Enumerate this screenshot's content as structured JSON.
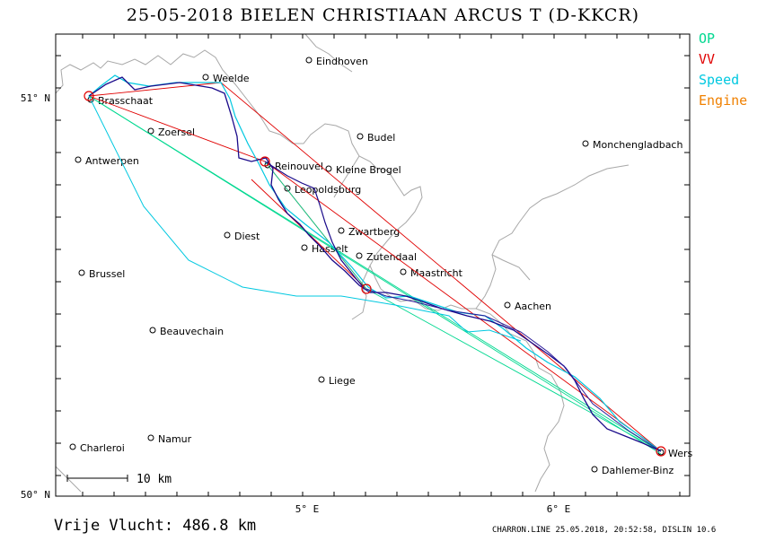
{
  "title": "25-05-2018   BIELEN CHRISTIAAN   ARCUS T (D-KKCR)",
  "legend": [
    {
      "label": "OP",
      "color": "#00d890"
    },
    {
      "label": "VV",
      "color": "#e00000"
    },
    {
      "label": "Speed",
      "color": "#00c8e0"
    },
    {
      "label": "Engine",
      "color": "#f08000"
    }
  ],
  "axes": {
    "lat_labels": [
      "51° N",
      "50° N"
    ],
    "lon_labels": [
      "5° E",
      "6° E"
    ]
  },
  "scale_bar": "10 km",
  "places": [
    {
      "name": "Eindhoven",
      "lon": 5.0,
      "lat": 51.44
    },
    {
      "name": "Weelde",
      "lon": 4.95,
      "lat": 51.41
    },
    {
      "name": "Brasschaat",
      "lon": 4.49,
      "lat": 51.29
    },
    {
      "name": "Budel",
      "lon": 5.58,
      "lat": 51.27
    },
    {
      "name": "Zoersel",
      "lon": 4.71,
      "lat": 51.27
    },
    {
      "name": "Monchengladbach",
      "lon": 6.44,
      "lat": 51.19
    },
    {
      "name": "Antwerpen",
      "lon": 4.4,
      "lat": 51.22
    },
    {
      "name": "Reinouvel",
      "lon": 5.33,
      "lat": 51.16
    },
    {
      "name": "Kleine Brogel",
      "lon": 5.45,
      "lat": 51.17
    },
    {
      "name": "Leopoldsburg",
      "lon": 5.26,
      "lat": 51.12
    },
    {
      "name": "Diest",
      "lon": 5.05,
      "lat": 50.98
    },
    {
      "name": "Zwartberg",
      "lon": 5.53,
      "lat": 51.0
    },
    {
      "name": "Hasselt",
      "lon": 5.33,
      "lat": 50.93
    },
    {
      "name": "Zutendaal",
      "lon": 5.58,
      "lat": 50.93
    },
    {
      "name": "Maastricht",
      "lon": 5.69,
      "lat": 50.85
    },
    {
      "name": "Brussel",
      "lon": 4.35,
      "lat": 50.85
    },
    {
      "name": "Aachen",
      "lon": 6.08,
      "lat": 50.78
    },
    {
      "name": "Beauvechain",
      "lon": 4.77,
      "lat": 50.75
    },
    {
      "name": "Liege",
      "lon": 5.57,
      "lat": 50.63
    },
    {
      "name": "Charleroi",
      "lon": 4.44,
      "lat": 50.41
    },
    {
      "name": "Namur",
      "lon": 4.87,
      "lat": 50.47
    },
    {
      "name": "Wers",
      "lon": 6.55,
      "lat": 50.39
    },
    {
      "name": "Dahlemer-Binz",
      "lon": 6.53,
      "lat": 50.4
    }
  ],
  "turnpoints": [
    {
      "lon": 4.13,
      "lat": 51.0
    },
    {
      "lon": 4.84,
      "lat": 50.83
    },
    {
      "lon": 5.24,
      "lat": 50.55
    },
    {
      "lon": 6.39,
      "lat": 50.13
    }
  ],
  "footer": {
    "distance": "Vrije Vlucht:  486.8 km",
    "stamp": "CHARRON.LINE 25.05.2018, 20:52:58, DISLIN 10.6"
  }
}
